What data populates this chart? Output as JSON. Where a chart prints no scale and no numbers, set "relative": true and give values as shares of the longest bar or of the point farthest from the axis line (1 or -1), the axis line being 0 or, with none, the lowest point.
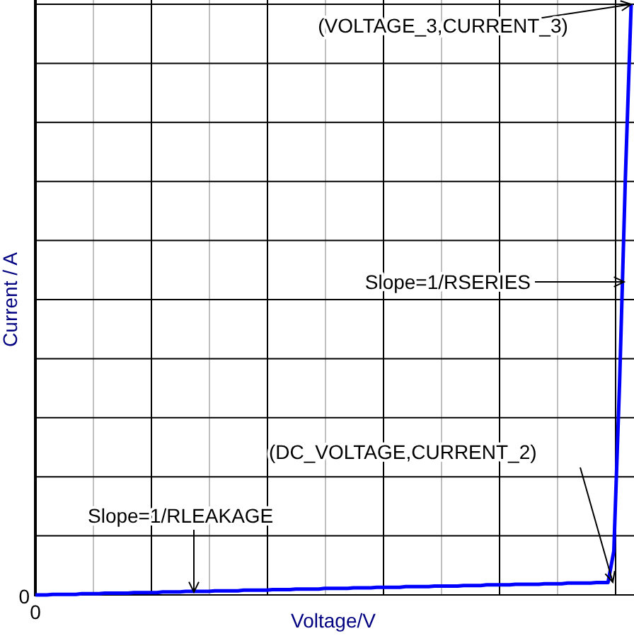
{
  "chart_data": {
    "type": "line",
    "xlabel": "Voltage/V",
    "ylabel": "Current / A",
    "relative": true,
    "categories": [
      null,
      null,
      null,
      null,
      null,
      null,
      null,
      null,
      null,
      null,
      null,
      null,
      null,
      null,
      null,
      null,
      null,
      null,
      null,
      null,
      null,
      null,
      null,
      null,
      null,
      null,
      null,
      null,
      null,
      null,
      null,
      null,
      null,
      null,
      null,
      null,
      null,
      null,
      null,
      null,
      null,
      null,
      null,
      null,
      null,
      null,
      null,
      null,
      null,
      null,
      null,
      null,
      null,
      null,
      null,
      null,
      null,
      null,
      null,
      null,
      null,
      null,
      null,
      null,
      null,
      null,
      null,
      null,
      null,
      null,
      null,
      null,
      null,
      null,
      null,
      null,
      null,
      null,
      null,
      null,
      null,
      null,
      null,
      null,
      null,
      null,
      null,
      null,
      null,
      null,
      null,
      null,
      null,
      null,
      null,
      null,
      null,
      null,
      null,
      null,
      null,
      null,
      null,
      null
    ],
    "series": [
      {
        "color": "#0000ff",
        "values": [
          0,
          0,
          0,
          0.001,
          0.001,
          0.001,
          0.001,
          0.001,
          0.002,
          0.002,
          0.002,
          0.002,
          0.003,
          0.003,
          0.003,
          0.003,
          0.003,
          0.004,
          0.004,
          0.004,
          0.004,
          0.004,
          0.005,
          0.005,
          0.005,
          0.005,
          0.006,
          0.006,
          0.006,
          0.006,
          0.006,
          0.007,
          0.007,
          0.007,
          0.007,
          0.007,
          0.008,
          0.008,
          0.008,
          0.008,
          0.008,
          0.009,
          0.009,
          0.009,
          0.009,
          0.01,
          0.01,
          0.01,
          0.01,
          0.01,
          0.011,
          0.011,
          0.011,
          0.011,
          0.011,
          0.012,
          0.012,
          0.012,
          0.012,
          0.013,
          0.013,
          0.013,
          0.013,
          0.013,
          0.014,
          0.014,
          0.014,
          0.014,
          0.014,
          0.015,
          0.015,
          0.015,
          0.015,
          0.015,
          0.016,
          0.016,
          0.016,
          0.016,
          0.017,
          0.017,
          0.017,
          0.017,
          0.017,
          0.018,
          0.018,
          0.018,
          0.018,
          0.018,
          0.019,
          0.019,
          0.019,
          0.019,
          0.02,
          0.02,
          0.02,
          0.02,
          0.02,
          0.021,
          0.021,
          0.021,
          0.074,
          0.36,
          0.707,
          1
        ]
      }
    ],
    "grid": true,
    "marker": "none",
    "line_style": "solid",
    "annotations": [
      "(VOLTAGE_3,CURRENT_3)",
      "Slope=1/RSERIES",
      "(DC_VOLTAGE,CURRENT_2)",
      "Slope=1/RLEAKAGE",
      "0",
      "0"
    ]
  }
}
